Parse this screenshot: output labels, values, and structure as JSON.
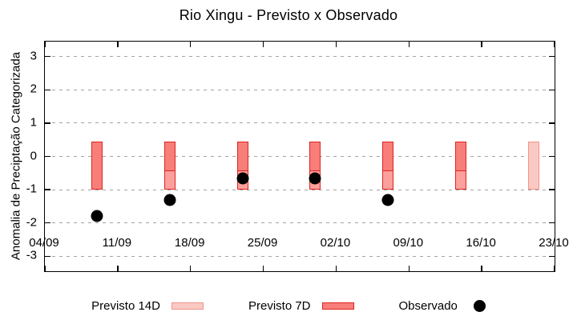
{
  "chart_data": {
    "type": "bar",
    "title": "Rio Xingu - Previsto x Observado",
    "xlabel": "",
    "ylabel": "Anomalia de Preciptação Categorizada",
    "ylim": [
      -3.45,
      3.45
    ],
    "x_axis_start": "04/09",
    "x_axis_end": "23/10",
    "x_range_days": 49,
    "x_ticks": [
      "04/09",
      "11/09",
      "18/09",
      "25/09",
      "02/10",
      "09/10",
      "16/10",
      "23/10"
    ],
    "y_ticks": [
      -3,
      -2,
      -1,
      0,
      1,
      2,
      3
    ],
    "grid": "horizontal-dashed-gray",
    "legend_position": "bottom",
    "categories": [
      "09/09",
      "16/09",
      "23/09",
      "30/09",
      "07/10",
      "14/10",
      "21/10"
    ],
    "series": [
      {
        "name": "Previsto 14D",
        "type": "range-bar",
        "ranges": [
          null,
          [
            -1.0,
            0.45
          ],
          [
            -1.0,
            0.45
          ],
          [
            -1.0,
            0.45
          ],
          [
            -1.0,
            0.45
          ],
          [
            -1.0,
            0.45
          ],
          [
            -1.0,
            0.45
          ]
        ]
      },
      {
        "name": "Previsto 7D",
        "type": "range-bar",
        "ranges": [
          [
            -1.0,
            0.45
          ],
          [
            -0.45,
            0.45
          ],
          [
            -0.45,
            0.45
          ],
          [
            -0.45,
            0.45
          ],
          [
            -0.45,
            0.45
          ],
          [
            -0.45,
            0.45
          ],
          null
        ]
      },
      {
        "name": "Observado",
        "type": "scatter",
        "values": [
          -1.8,
          -1.3,
          -0.65,
          -0.65,
          -1.3,
          null,
          null
        ]
      }
    ]
  },
  "colors": {
    "red_fill": "#f87e7a",
    "red_border": "#de2420",
    "pink_overlap_fill": "#fba09c",
    "pink_fill": "#fbc9c3",
    "pink_border": "#f0948c",
    "dot": "#000000",
    "grid": "#a3a3a3",
    "frame": "#000000",
    "background": "#ffffff"
  }
}
